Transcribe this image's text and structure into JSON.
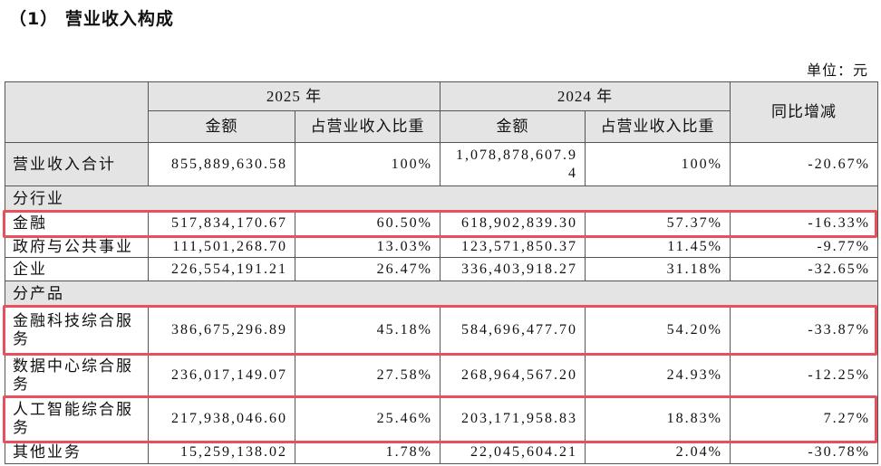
{
  "title": "（1） 营业收入构成",
  "unit": "单位：元",
  "table": {
    "header": {
      "year_2025": "2025 年",
      "year_2024": "2024 年",
      "change": "同比增减",
      "amount_2025": "金额",
      "share_2025": "占营业收入比重",
      "amount_2024": "金额",
      "share_2024": "占营业收入比重"
    },
    "rows": [
      [
        "营业收入合计",
        "855,889,630.58",
        "100%",
        "1,078,878,607.94",
        "100%",
        "-20.67%"
      ],
      [
        "分行业"
      ],
      [
        "金融",
        "517,834,170.67",
        "60.50%",
        "618,902,839.30",
        "57.37%",
        "-16.33%"
      ],
      [
        "政府与公共事业",
        "111,501,268.70",
        "13.03%",
        "123,571,850.37",
        "11.45%",
        "-9.77%"
      ],
      [
        "企业",
        "226,554,191.21",
        "26.47%",
        "336,403,918.27",
        "31.18%",
        "-32.65%"
      ],
      [
        "分产品"
      ],
      [
        "金融科技综合服务",
        "386,675,296.89",
        "45.18%",
        "584,696,477.70",
        "54.20%",
        "-33.87%"
      ],
      [
        "数据中心综合服务",
        "236,017,149.07",
        "27.58%",
        "268,964,567.20",
        "24.93%",
        "-12.25%"
      ],
      [
        "人工智能综合服务",
        "217,938,046.60",
        "25.46%",
        "203,171,958.83",
        "18.83%",
        "7.27%"
      ],
      [
        "其他业务",
        "15,259,138.02",
        "1.78%",
        "22,045,604.21",
        "2.04%",
        "-30.78%"
      ]
    ],
    "highlighted_rows": [
      2,
      6,
      8
    ]
  }
}
